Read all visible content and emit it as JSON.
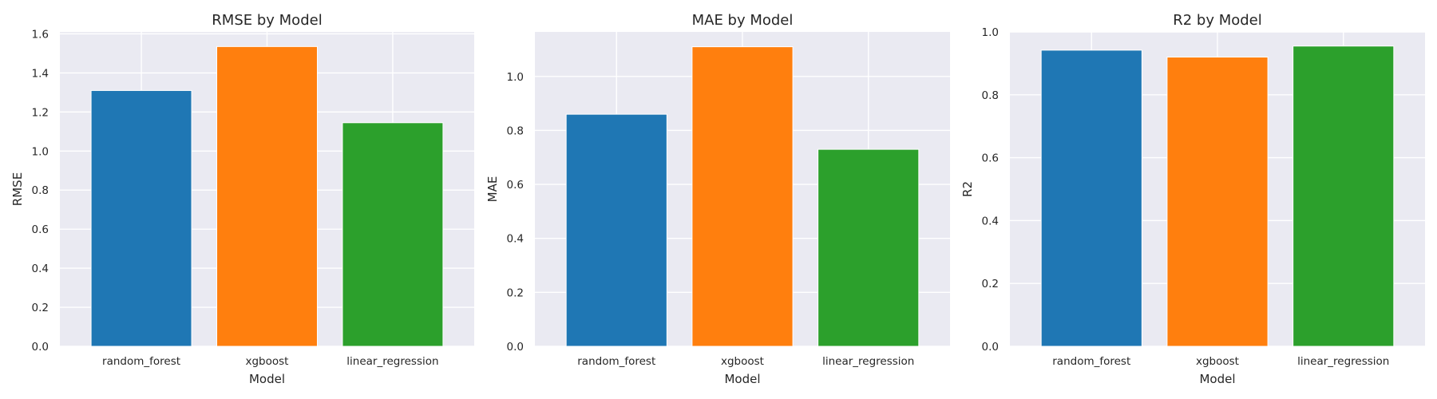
{
  "chart_data": [
    {
      "type": "bar",
      "title": "RMSE by Model",
      "xlabel": "Model",
      "ylabel": "RMSE",
      "categories": [
        "random_forest",
        "xgboost",
        "linear_regression"
      ],
      "values": [
        1.31,
        1.535,
        1.145
      ],
      "ylim": [
        0,
        1.61
      ],
      "yticks": [
        "0.0",
        "0.2",
        "0.4",
        "0.6",
        "0.8",
        "1.0",
        "1.2",
        "1.4",
        "1.6"
      ],
      "colors": [
        "#1f77b4",
        "#ff7f0e",
        "#2ca02c"
      ],
      "grid": true
    },
    {
      "type": "bar",
      "title": "MAE by Model",
      "xlabel": "Model",
      "ylabel": "MAE",
      "categories": [
        "random_forest",
        "xgboost",
        "linear_regression"
      ],
      "values": [
        0.86,
        1.11,
        0.73
      ],
      "ylim": [
        0,
        1.165
      ],
      "yticks": [
        "0.0",
        "0.2",
        "0.4",
        "0.6",
        "0.8",
        "1.0"
      ],
      "colors": [
        "#1f77b4",
        "#ff7f0e",
        "#2ca02c"
      ],
      "grid": true
    },
    {
      "type": "bar",
      "title": "R2 by Model",
      "xlabel": "Model",
      "ylabel": "R2",
      "categories": [
        "random_forest",
        "xgboost",
        "linear_regression"
      ],
      "values": [
        0.942,
        0.92,
        0.955
      ],
      "ylim": [
        0,
        1.0
      ],
      "yticks": [
        "0.0",
        "0.2",
        "0.4",
        "0.6",
        "0.8",
        "1.0"
      ],
      "colors": [
        "#1f77b4",
        "#ff7f0e",
        "#2ca02c"
      ],
      "grid": true
    }
  ]
}
